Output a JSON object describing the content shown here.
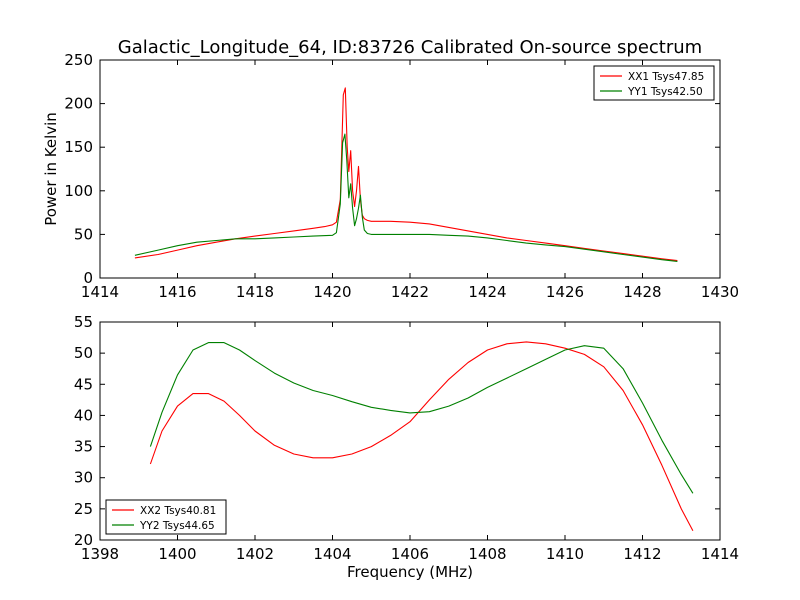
{
  "chart_data": [
    {
      "type": "line",
      "title": "Galactic_Longitude_64, ID:83726 Calibrated On-source spectrum",
      "xlabel": "",
      "ylabel": "Power in Kelvin",
      "xlim": [
        1414,
        1430
      ],
      "ylim": [
        0,
        250
      ],
      "xticks": [
        "1414",
        "1416",
        "1418",
        "1420",
        "1422",
        "1424",
        "1426",
        "1428",
        "1430"
      ],
      "yticks": [
        "0",
        "50",
        "100",
        "150",
        "200",
        "250"
      ],
      "grid": false,
      "legend_position": "top-right",
      "series": [
        {
          "name": "XX1 Tsys47.85",
          "color": "#ff0000",
          "x": [
            1414.9,
            1415.5,
            1416.0,
            1416.5,
            1417.0,
            1417.5,
            1418.0,
            1418.5,
            1419.0,
            1419.5,
            1419.8,
            1420.0,
            1420.1,
            1420.2,
            1420.28,
            1420.33,
            1420.38,
            1420.42,
            1420.47,
            1420.52,
            1420.57,
            1420.62,
            1420.67,
            1420.72,
            1420.77,
            1420.82,
            1420.9,
            1421.0,
            1421.2,
            1421.5,
            1422.0,
            1422.5,
            1423.0,
            1423.5,
            1424.0,
            1424.5,
            1425.0,
            1425.5,
            1426.0,
            1426.5,
            1427.0,
            1427.5,
            1428.0,
            1428.5,
            1428.9
          ],
          "y": [
            23,
            27,
            32,
            37,
            41,
            45,
            48,
            51,
            54,
            57,
            59,
            61,
            64,
            90,
            210,
            218,
            150,
            122,
            146,
            100,
            82,
            100,
            128,
            90,
            72,
            68,
            66,
            65,
            65,
            65,
            64,
            62,
            58,
            54,
            50,
            46,
            43,
            40,
            37,
            34,
            31,
            28,
            25,
            22,
            20
          ]
        },
        {
          "name": "YY1 Tsys42.50",
          "color": "#008000",
          "x": [
            1414.9,
            1415.5,
            1416.0,
            1416.5,
            1417.0,
            1417.5,
            1418.0,
            1418.5,
            1419.0,
            1419.5,
            1420.0,
            1420.1,
            1420.2,
            1420.26,
            1420.32,
            1420.37,
            1420.42,
            1420.47,
            1420.52,
            1420.57,
            1420.62,
            1420.67,
            1420.72,
            1420.77,
            1420.82,
            1420.9,
            1421.0,
            1421.2,
            1421.5,
            1422.0,
            1422.5,
            1423.0,
            1423.5,
            1424.0,
            1424.5,
            1425.0,
            1425.5,
            1426.0,
            1426.5,
            1427.0,
            1427.5,
            1428.0,
            1428.5,
            1428.9
          ],
          "y": [
            26,
            32,
            37,
            41,
            43,
            45,
            45,
            46,
            47,
            48,
            49,
            52,
            85,
            155,
            165,
            135,
            92,
            108,
            80,
            60,
            68,
            80,
            95,
            70,
            55,
            51,
            50,
            50,
            50,
            50,
            50,
            49,
            48,
            46,
            43,
            40,
            38,
            36,
            33,
            30,
            27,
            24,
            21,
            19
          ]
        }
      ]
    },
    {
      "type": "line",
      "title": "",
      "xlabel": "Frequency (MHz)",
      "ylabel": "",
      "xlim": [
        1398,
        1414
      ],
      "ylim": [
        20,
        55
      ],
      "xticks": [
        "1398",
        "1400",
        "1402",
        "1404",
        "1406",
        "1408",
        "1410",
        "1412",
        "1414"
      ],
      "yticks": [
        "20",
        "25",
        "30",
        "35",
        "40",
        "45",
        "50",
        "55"
      ],
      "grid": false,
      "legend_position": "bottom-left",
      "series": [
        {
          "name": "XX2 Tsys40.81",
          "color": "#ff0000",
          "x": [
            1399.3,
            1399.6,
            1400.0,
            1400.4,
            1400.8,
            1401.2,
            1401.6,
            1402.0,
            1402.5,
            1403.0,
            1403.5,
            1404.0,
            1404.5,
            1405.0,
            1405.5,
            1406.0,
            1406.5,
            1407.0,
            1407.5,
            1408.0,
            1408.5,
            1409.0,
            1409.5,
            1410.0,
            1410.5,
            1411.0,
            1411.5,
            1412.0,
            1412.5,
            1413.0,
            1413.3
          ],
          "y": [
            32.2,
            37.5,
            41.5,
            43.5,
            43.5,
            42.3,
            40.0,
            37.5,
            35.2,
            33.8,
            33.2,
            33.2,
            33.8,
            35.0,
            36.8,
            39.0,
            42.5,
            45.8,
            48.5,
            50.5,
            51.5,
            51.8,
            51.5,
            50.8,
            49.8,
            47.8,
            44.0,
            38.5,
            32.0,
            25.0,
            21.5
          ]
        },
        {
          "name": "YY2 Tsys44.65",
          "color": "#008000",
          "x": [
            1399.3,
            1399.6,
            1400.0,
            1400.4,
            1400.8,
            1401.2,
            1401.6,
            1402.0,
            1402.5,
            1403.0,
            1403.5,
            1404.0,
            1404.5,
            1405.0,
            1405.5,
            1406.0,
            1406.5,
            1407.0,
            1407.5,
            1408.0,
            1408.5,
            1409.0,
            1409.5,
            1410.0,
            1410.5,
            1411.0,
            1411.5,
            1412.0,
            1412.5,
            1413.0,
            1413.3
          ],
          "y": [
            35.0,
            40.5,
            46.5,
            50.5,
            51.7,
            51.7,
            50.5,
            48.8,
            46.8,
            45.2,
            44.0,
            43.2,
            42.2,
            41.3,
            40.8,
            40.4,
            40.6,
            41.5,
            42.8,
            44.5,
            46.0,
            47.5,
            49.0,
            50.5,
            51.2,
            50.8,
            47.5,
            42.0,
            36.0,
            30.5,
            27.5
          ]
        }
      ]
    }
  ]
}
